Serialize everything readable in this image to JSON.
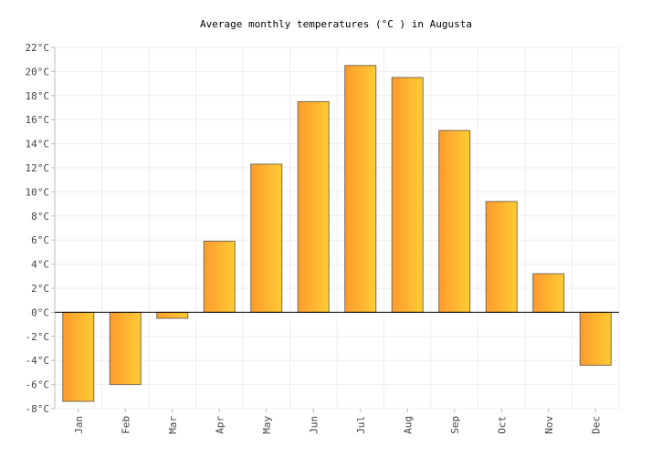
{
  "chart_data": {
    "type": "bar",
    "title": "Average monthly temperatures (°C ) in Augusta",
    "xlabel": "",
    "ylabel": "",
    "categories": [
      "Jan",
      "Feb",
      "Mar",
      "Apr",
      "May",
      "Jun",
      "Jul",
      "Aug",
      "Sep",
      "Oct",
      "Nov",
      "Dec"
    ],
    "values": [
      -7.4,
      -6.0,
      -0.5,
      5.9,
      12.3,
      17.5,
      20.5,
      19.5,
      15.1,
      9.2,
      3.2,
      -4.4
    ],
    "ylim": [
      -8,
      22
    ],
    "yticks": [
      -8,
      -6,
      -4,
      -2,
      0,
      2,
      4,
      6,
      8,
      10,
      12,
      14,
      16,
      18,
      20,
      22
    ],
    "ytick_suffix": "°C",
    "grid": true,
    "legend": "none",
    "colors": {
      "bar_gradient_start": "#ff9a2e",
      "bar_gradient_end": "#ffcc33",
      "bar_stroke": "#7a6a4a",
      "grid": "#eeeeee",
      "zero_line": "#000000",
      "axis": "#bbbbbb"
    }
  }
}
